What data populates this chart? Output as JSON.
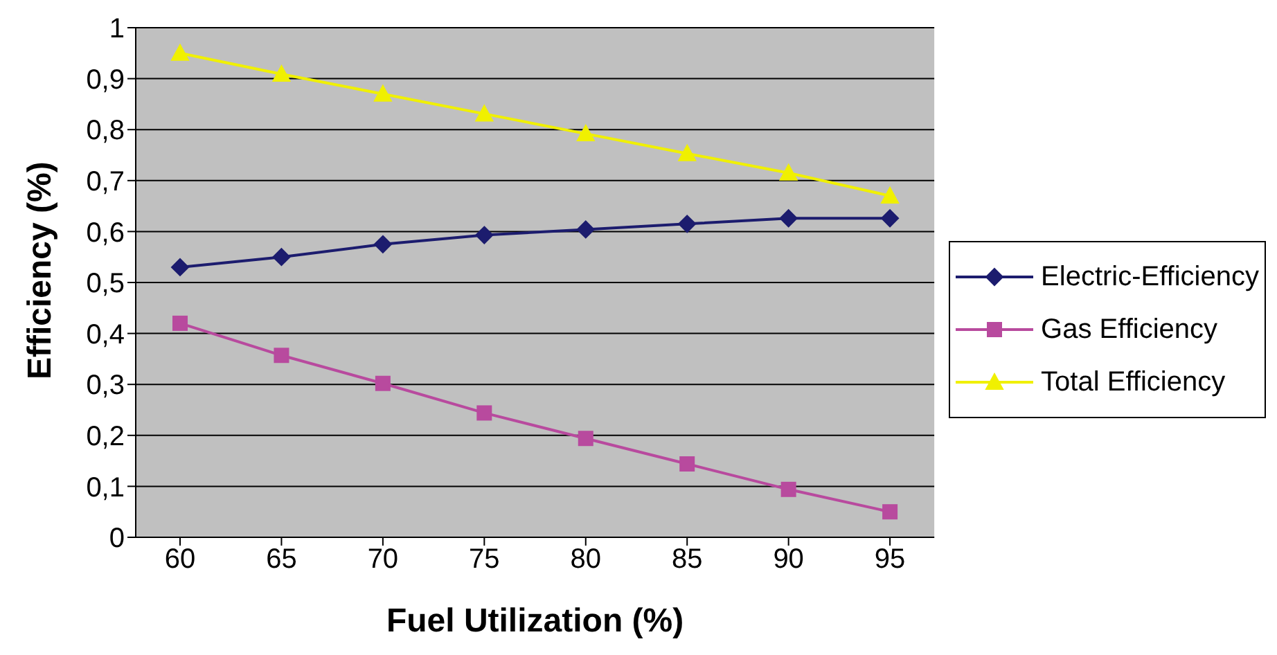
{
  "chart_data": {
    "type": "line",
    "xlabel": "Fuel Utilization (%)",
    "ylabel": "Efficiency (%)",
    "categories": [
      "60",
      "65",
      "70",
      "75",
      "80",
      "85",
      "90",
      "95"
    ],
    "series": [
      {
        "name": "Electric-Efficiency",
        "color": "#1c1c6e",
        "marker": "diamond",
        "values": [
          0.53,
          0.55,
          0.575,
          0.593,
          0.604,
          0.615,
          0.626,
          0.626
        ]
      },
      {
        "name": "Gas Efficiency",
        "color": "#b84a9e",
        "marker": "square",
        "values": [
          0.42,
          0.357,
          0.302,
          0.244,
          0.194,
          0.144,
          0.094,
          0.05
        ]
      },
      {
        "name": "Total Efficiency",
        "color": "#f0f000",
        "marker": "triangle",
        "values": [
          0.95,
          0.909,
          0.87,
          0.831,
          0.792,
          0.753,
          0.715,
          0.67
        ]
      }
    ],
    "ylim": [
      0,
      1
    ],
    "yticks": [
      0,
      {
        "value": 0.1,
        "label": "0,1"
      },
      {
        "value": 0.2,
        "label": "0,2"
      },
      {
        "value": 0.3,
        "label": "0,3"
      },
      {
        "value": 0.4,
        "label": "0,4"
      },
      {
        "value": 0.5,
        "label": "0,5"
      },
      {
        "value": 0.6,
        "label": "0,6"
      },
      {
        "value": 0.7,
        "label": "0,7"
      },
      {
        "value": 0.8,
        "label": "0,8"
      },
      {
        "value": 0.9,
        "label": "0,9"
      },
      1
    ],
    "grid": "y",
    "legend": "right",
    "line_style": "solid"
  }
}
